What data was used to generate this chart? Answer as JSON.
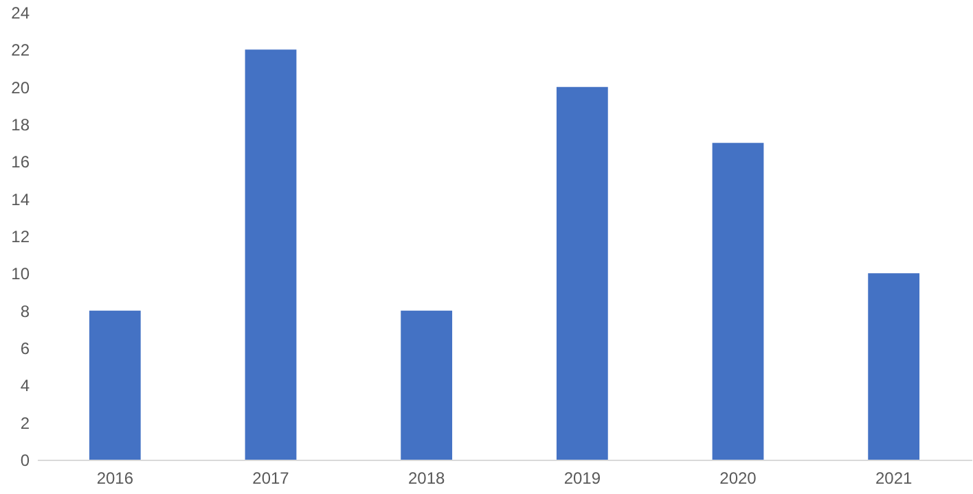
{
  "chart_data": {
    "type": "bar",
    "categories": [
      "2016",
      "2017",
      "2018",
      "2019",
      "2020",
      "2021"
    ],
    "values": [
      8,
      22,
      8,
      20,
      17,
      10
    ],
    "color": "#4472c4",
    "ylim": [
      0,
      24
    ],
    "yticks": [
      0,
      2,
      4,
      6,
      8,
      10,
      12,
      14,
      16,
      18,
      20,
      22,
      24
    ],
    "grid": false
  }
}
